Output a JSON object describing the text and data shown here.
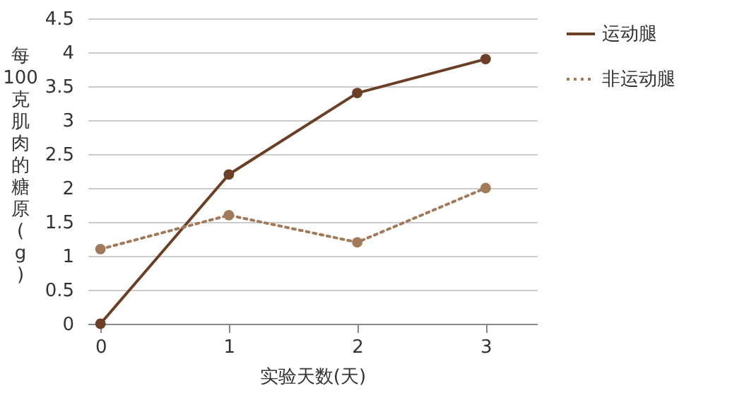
{
  "chart_data": {
    "type": "line",
    "xlabel": "实验天数(天)",
    "ylabel": "每100克肌肉的糖原(g)",
    "x": [
      0,
      1,
      2,
      3
    ],
    "series": [
      {
        "name": "运动腿",
        "color": "#6b3e26",
        "line_style": "solid",
        "values": [
          0,
          2.2,
          3.4,
          3.9
        ]
      },
      {
        "name": "非运动腿",
        "color": "#a07a5a",
        "line_style": "dotted",
        "values": [
          1.1,
          1.6,
          1.2,
          2.0
        ]
      }
    ],
    "xlim": [
      -0.1,
      3.4
    ],
    "xticks": [
      0,
      1,
      2,
      3
    ],
    "ylim": [
      0,
      4.5
    ],
    "yticks": [
      0,
      0.5,
      1,
      1.5,
      2,
      2.5,
      3,
      3.5,
      4,
      4.5
    ],
    "grid": "y",
    "legend": "right",
    "marker": "circle"
  }
}
